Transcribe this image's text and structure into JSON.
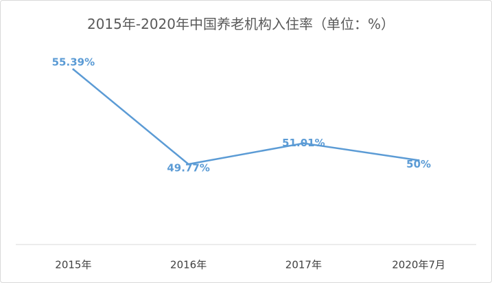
{
  "chart_data": {
    "type": "line",
    "title": "2015年-2020年中国养老机构入住率（单位：%）",
    "categories": [
      "2015年",
      "2016年",
      "2017年",
      "2020年7月"
    ],
    "series": [
      {
        "values": [
          55.39,
          49.77,
          51.01,
          50
        ]
      }
    ],
    "data_labels": [
      "55.39%",
      "49.77%",
      "51.01%",
      "50%"
    ],
    "xlabel": "",
    "ylabel": "",
    "ylim": [
      45,
      56
    ],
    "grid": false,
    "legend": "none",
    "colors": {
      "line": "#5b9bd5",
      "axis": "#d9d9d9",
      "title": "#595959"
    }
  }
}
